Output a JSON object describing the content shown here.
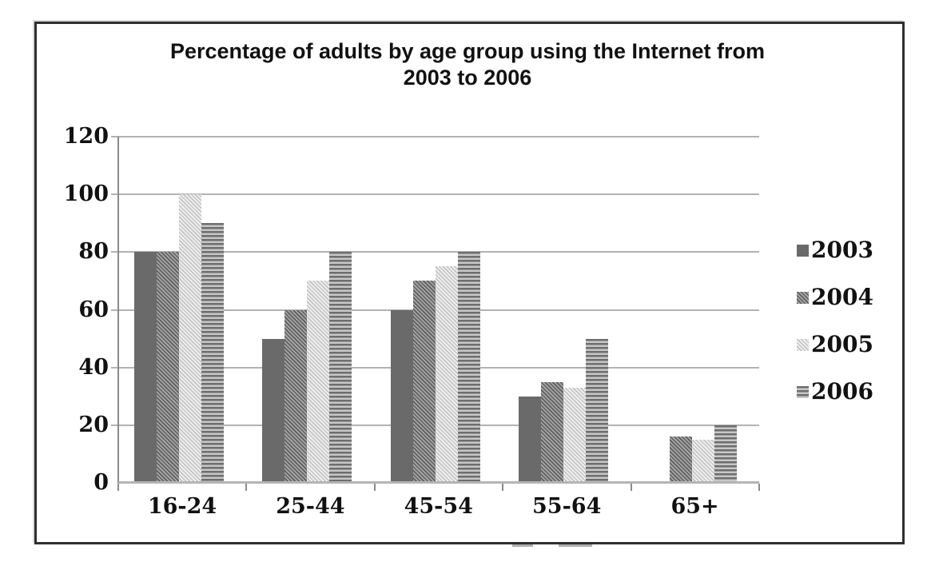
{
  "chart_data": {
    "type": "bar",
    "title": "Percentage of adults by age group using the Internet from 2003 to 2006",
    "title_lines": [
      "Percentage of adults by age group using the Internet from",
      "2003 to 2006"
    ],
    "categories": [
      "16-24",
      "25-44",
      "45-54",
      "55-64",
      "65+"
    ],
    "series": [
      {
        "name": "2003",
        "pattern": "solid-dark",
        "values": [
          80,
          50,
          60,
          30,
          null
        ]
      },
      {
        "name": "2004",
        "pattern": "diagonal-hatch",
        "values": [
          80,
          60,
          70,
          35,
          16
        ]
      },
      {
        "name": "2005",
        "pattern": "light-speckle",
        "values": [
          100,
          70,
          75,
          33,
          15
        ]
      },
      {
        "name": "2006",
        "pattern": "horizontal-stripes",
        "values": [
          90,
          80,
          80,
          50,
          20
        ]
      }
    ],
    "xlabel": "",
    "ylabel": "",
    "ylim": [
      0,
      120
    ],
    "yticks": [
      0,
      20,
      40,
      60,
      80,
      100,
      120
    ],
    "grid": true,
    "legend_position": "right",
    "legend_entries": [
      "2003",
      "2004",
      "2005",
      "2006"
    ],
    "colors": {
      "bar_solid": "#6a6a6a",
      "hatch_dark": "#5e5e5e",
      "hatch_light": "#a6a6a6",
      "speckle_dark": "#c3c3c3",
      "speckle_light": "#f1f1f1",
      "stripe_dark": "#6e6e6e",
      "stripe_light": "#c7c7c7",
      "gridline": "#b2b2b2",
      "axis": "#8a8a8a",
      "frame_border": "#2f2f2f",
      "text": "#111111"
    }
  }
}
